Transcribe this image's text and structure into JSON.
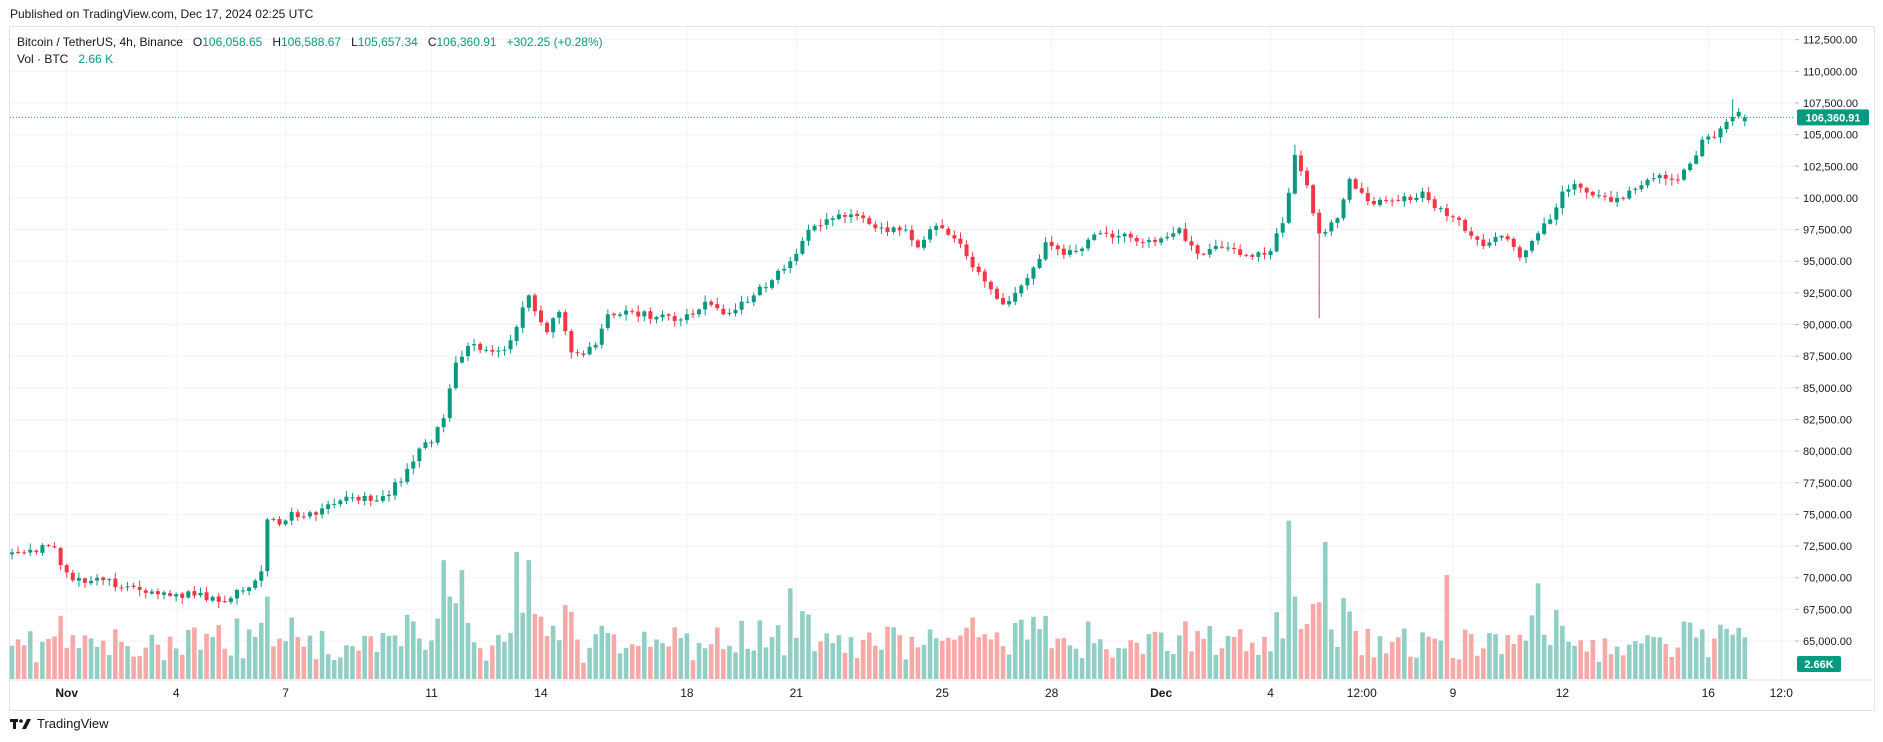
{
  "published_text": "Published on TradingView.com, Dec 17, 2024 02:25 UTC",
  "brand": "TradingView",
  "legend": {
    "symbol": "Bitcoin / TetherUS, 4h, Binance",
    "open_label": "O",
    "open": "106,058.65",
    "high_label": "H",
    "high": "106,588.67",
    "low_label": "L",
    "low": "105,657.34",
    "close_label": "C",
    "close": "106,360.91",
    "change": "+302.25 (+0.28%)",
    "vol_label": "Vol · BTC",
    "vol_value": "2.66 K"
  },
  "colors": {
    "up": "#089981",
    "down": "#f23645",
    "vol_up": "#91cfc5",
    "vol_down": "#f7a9a7",
    "grid": "#f0f3fa",
    "text": "#131722",
    "price_line": "#089981"
  },
  "chart_data": {
    "type": "candlestick",
    "symbol": "Bitcoin / TetherUS",
    "interval": "4h",
    "exchange": "Binance",
    "last_price": 106360.91,
    "last_price_label": "106,360.91",
    "last_volume_label": "2.66K",
    "y_range": [
      62000,
      113500
    ],
    "y_ticks": [
      65000,
      67500,
      70000,
      72500,
      75000,
      77500,
      80000,
      82500,
      85000,
      87500,
      90000,
      92500,
      95000,
      97500,
      100000,
      102500,
      105000,
      107500,
      110000,
      112500
    ],
    "y_tick_labels": [
      "65,000.00",
      "67,500.00",
      "70,000.00",
      "72,500.00",
      "75,000.00",
      "77,500.00",
      "80,000.00",
      "82,500.00",
      "85,000.00",
      "87,500.00",
      "90,000.00",
      "92,500.00",
      "95,000.00",
      "97,500.00",
      "100,000.00",
      "102,500.00",
      "105,000.00",
      "107,500.00",
      "110,000.00",
      "112,500.00"
    ],
    "x_ticks": [
      {
        "label": "Nov",
        "bar": 9
      },
      {
        "label": "4",
        "bar": 27
      },
      {
        "label": "7",
        "bar": 45
      },
      {
        "label": "11",
        "bar": 69
      },
      {
        "label": "14",
        "bar": 87
      },
      {
        "label": "18",
        "bar": 111
      },
      {
        "label": "21",
        "bar": 129
      },
      {
        "label": "25",
        "bar": 153
      },
      {
        "label": "28",
        "bar": 171
      },
      {
        "label": "Dec",
        "bar": 189
      },
      {
        "label": "4",
        "bar": 207
      },
      {
        "label": "12:00",
        "bar": 222
      },
      {
        "label": "9",
        "bar": 237
      },
      {
        "label": "12",
        "bar": 255
      },
      {
        "label": "16",
        "bar": 279
      },
      {
        "label": "12:0",
        "bar": 291
      }
    ],
    "volume_scale_max": 1,
    "anchors_close": [
      [
        0,
        72000
      ],
      [
        3,
        72200
      ],
      [
        7,
        72400
      ],
      [
        8,
        71000
      ],
      [
        10,
        69800
      ],
      [
        14,
        70000
      ],
      [
        18,
        69200
      ],
      [
        22,
        68800
      ],
      [
        27,
        68700
      ],
      [
        31,
        68800
      ],
      [
        34,
        68100
      ],
      [
        38,
        69000
      ],
      [
        41,
        70500
      ],
      [
        42,
        74600
      ],
      [
        44,
        74200
      ],
      [
        46,
        75200
      ],
      [
        48,
        74800
      ],
      [
        52,
        75800
      ],
      [
        55,
        76400
      ],
      [
        60,
        76100
      ],
      [
        64,
        77600
      ],
      [
        67,
        80200
      ],
      [
        69,
        80700
      ],
      [
        71,
        82600
      ],
      [
        73,
        87000
      ],
      [
        75,
        88300
      ],
      [
        78,
        88000
      ],
      [
        81,
        88000
      ],
      [
        83,
        89800
      ],
      [
        85,
        92300
      ],
      [
        88,
        89400
      ],
      [
        90,
        91000
      ],
      [
        92,
        87800
      ],
      [
        94,
        87600
      ],
      [
        96,
        88400
      ],
      [
        98,
        90800
      ],
      [
        102,
        91000
      ],
      [
        106,
        90600
      ],
      [
        110,
        90400
      ],
      [
        114,
        91800
      ],
      [
        117,
        90800
      ],
      [
        120,
        91800
      ],
      [
        122,
        92300
      ],
      [
        125,
        93500
      ],
      [
        128,
        95000
      ],
      [
        130,
        96600
      ],
      [
        132,
        97800
      ],
      [
        136,
        98700
      ],
      [
        140,
        98400
      ],
      [
        144,
        97300
      ],
      [
        147,
        97500
      ],
      [
        149,
        96100
      ],
      [
        152,
        97800
      ],
      [
        155,
        96800
      ],
      [
        157,
        95400
      ],
      [
        160,
        93400
      ],
      [
        163,
        91600
      ],
      [
        165,
        92500
      ],
      [
        168,
        94500
      ],
      [
        170,
        96500
      ],
      [
        173,
        95500
      ],
      [
        176,
        96000
      ],
      [
        179,
        97200
      ],
      [
        182,
        97000
      ],
      [
        186,
        96500
      ],
      [
        189,
        96800
      ],
      [
        192,
        97600
      ],
      [
        195,
        95600
      ],
      [
        198,
        96200
      ],
      [
        202,
        95500
      ],
      [
        205,
        95700
      ],
      [
        207,
        95800
      ],
      [
        209,
        98000
      ],
      [
        211,
        103400
      ],
      [
        213,
        101000
      ],
      [
        215,
        97200
      ],
      [
        218,
        98400
      ],
      [
        220,
        101500
      ],
      [
        224,
        99500
      ],
      [
        228,
        99800
      ],
      [
        232,
        100500
      ],
      [
        234,
        99200
      ],
      [
        237,
        98500
      ],
      [
        239,
        97400
      ],
      [
        242,
        96200
      ],
      [
        245,
        97000
      ],
      [
        248,
        95300
      ],
      [
        251,
        97200
      ],
      [
        253,
        98300
      ],
      [
        255,
        100500
      ],
      [
        257,
        101100
      ],
      [
        260,
        100200
      ],
      [
        263,
        99700
      ],
      [
        265,
        100000
      ],
      [
        268,
        101000
      ],
      [
        271,
        101800
      ],
      [
        274,
        101400
      ],
      [
        276,
        102700
      ],
      [
        278,
        104600
      ],
      [
        280,
        104800
      ],
      [
        282,
        106000
      ],
      [
        284,
        106800
      ],
      [
        285,
        106360.91
      ]
    ],
    "spikes": [
      {
        "bar": 215,
        "low": 90500
      },
      {
        "bar": 211,
        "high": 104200
      },
      {
        "bar": 283,
        "high": 107800
      }
    ],
    "volume_spikes": [
      {
        "bar": 210,
        "value": 0.96
      },
      {
        "bar": 216,
        "value": 0.83
      },
      {
        "bar": 83,
        "value": 0.77
      },
      {
        "bar": 85,
        "value": 0.72
      },
      {
        "bar": 71,
        "value": 0.72
      },
      {
        "bar": 74,
        "value": 0.66
      },
      {
        "bar": 236,
        "value": 0.63
      },
      {
        "bar": 251,
        "value": 0.58
      },
      {
        "bar": 128,
        "value": 0.55
      }
    ]
  }
}
